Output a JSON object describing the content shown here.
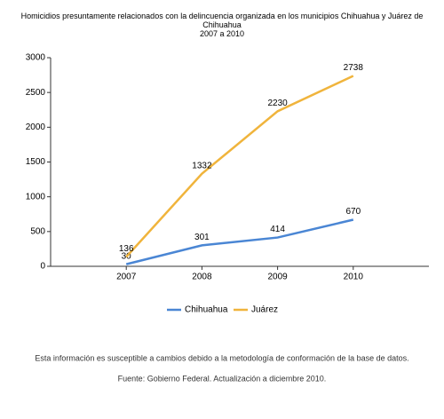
{
  "chart_data": {
    "type": "line",
    "title": "Homicidios presuntamente relacionados con la delincuencia organizada en los municipios Chihuahua y Juárez de Chihuahua",
    "subtitle": "2007 a 2010",
    "categories": [
      "2007",
      "2008",
      "2009",
      "2010"
    ],
    "series": [
      {
        "name": "Chihuahua",
        "color": "#4a86d4",
        "values": [
          30,
          301,
          414,
          670
        ]
      },
      {
        "name": "Juárez",
        "color": "#f0b43c",
        "values": [
          136,
          1332,
          2230,
          2738
        ]
      }
    ],
    "ylim": [
      0,
      3000
    ],
    "yticks": [
      0,
      500,
      1000,
      1500,
      2000,
      2500,
      3000
    ],
    "grid": false,
    "legend": "bottom",
    "notes": [
      "Esta información es susceptible a cambios debido a la metodología de conformación de la base de datos.",
      "Fuente: Gobierno Federal. Actualización a diciembre 2010."
    ]
  }
}
